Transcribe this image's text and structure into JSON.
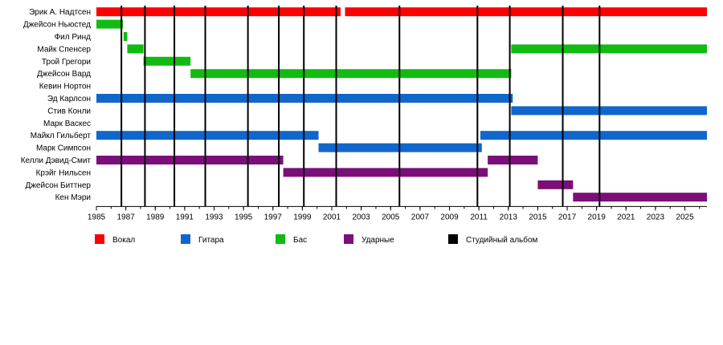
{
  "chart_data": {
    "type": "timeline",
    "xlim": [
      1985,
      2026.5
    ],
    "x_ticks": [
      "1985",
      "1987",
      "1989",
      "1991",
      "1993",
      "1995",
      "1997",
      "1999",
      "2001",
      "2003",
      "2005",
      "2007",
      "2009",
      "2011",
      "2013",
      "2015",
      "2017",
      "2019",
      "2021",
      "2023",
      "2025"
    ],
    "minor_ticks_every_year": true,
    "members": [
      {
        "name": "Эрик А. Надтсен",
        "bars": [
          {
            "role": "vocal",
            "start": 1985,
            "end": 2001.6
          },
          {
            "role": "vocal",
            "start": 2001.9,
            "end": 2026.5
          }
        ]
      },
      {
        "name": "Джейсон Ньюстед",
        "bars": [
          {
            "role": "bass",
            "start": 1985,
            "end": 1986.8
          }
        ]
      },
      {
        "name": "Фил Ринд",
        "bars": [
          {
            "role": "bass",
            "start": 1986.85,
            "end": 1987.1
          }
        ]
      },
      {
        "name": "Майк Спенсер",
        "bars": [
          {
            "role": "bass",
            "start": 1987.1,
            "end": 1988.2
          },
          {
            "role": "bass",
            "start": 2013.2,
            "end": 2026.5
          }
        ]
      },
      {
        "name": "Трой Грегори",
        "bars": [
          {
            "role": "bass",
            "start": 1988.2,
            "end": 1991.4
          }
        ]
      },
      {
        "name": "Джейсон Вард",
        "bars": [
          {
            "role": "bass",
            "start": 1991.4,
            "end": 2013.2
          }
        ]
      },
      {
        "name": "Кевин Нортон",
        "bars": []
      },
      {
        "name": "Эд Карлсон",
        "bars": [
          {
            "role": "guitar",
            "start": 1985,
            "end": 2013.3
          }
        ]
      },
      {
        "name": "Стив Конли",
        "bars": [
          {
            "role": "guitar",
            "start": 2013.2,
            "end": 2026.5
          }
        ]
      },
      {
        "name": "Марк Васкес",
        "bars": []
      },
      {
        "name": "Майкл Гильберт",
        "bars": [
          {
            "role": "guitar",
            "start": 1985,
            "end": 2000.1
          },
          {
            "role": "guitar",
            "start": 2011.1,
            "end": 2026.5
          }
        ]
      },
      {
        "name": "Марк Симпсон",
        "bars": [
          {
            "role": "guitar",
            "start": 2000.1,
            "end": 2011.2
          }
        ]
      },
      {
        "name": "Келли Дэвид-Смит",
        "bars": [
          {
            "role": "drums",
            "start": 1985,
            "end": 1997.7
          },
          {
            "role": "drums",
            "start": 2011.6,
            "end": 2015.0
          }
        ]
      },
      {
        "name": "Крэйг Нильсен",
        "bars": [
          {
            "role": "drums",
            "start": 1997.7,
            "end": 2011.6
          }
        ]
      },
      {
        "name": "Джейсон Биттнер",
        "bars": [
          {
            "role": "drums",
            "start": 2015.0,
            "end": 2017.4
          }
        ]
      },
      {
        "name": "Кен Мэри",
        "bars": [
          {
            "role": "drums",
            "start": 2017.4,
            "end": 2026.5
          }
        ]
      }
    ],
    "albums": [
      1986.7,
      1988.3,
      1990.3,
      1992.4,
      1995.3,
      1997.4,
      1999.1,
      2001.3,
      2005.6,
      2010.9,
      2013.1,
      2016.7,
      2019.2
    ],
    "legend": [
      {
        "key": "vocal",
        "label": "Вокал",
        "color": "#ff0000"
      },
      {
        "key": "guitar",
        "label": "Гитара",
        "color": "#1166cc"
      },
      {
        "key": "bass",
        "label": "Бас",
        "color": "#11bb11"
      },
      {
        "key": "drums",
        "label": "Ударные",
        "color": "#7a0f7a"
      },
      {
        "key": "album",
        "label": "Студийный альбом",
        "color": "#000000"
      }
    ],
    "legend_position": "bottom"
  }
}
